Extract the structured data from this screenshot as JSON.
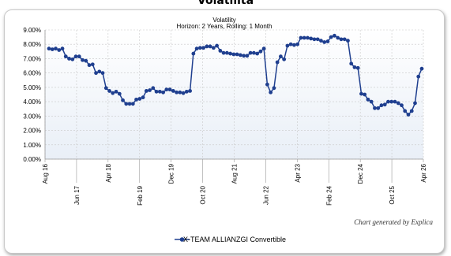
{
  "page_title": "Volatilita",
  "credit": "Chart generated by Explica",
  "colors": {
    "series": "#1f3f8f",
    "grid": "#c8c8c8",
    "plot_bg_top": "#ffffff",
    "plot_bg_bottom": "#e9eff7"
  },
  "chart_data": {
    "type": "line",
    "title": "Volatility",
    "subtitle": "Horizon: 2 Years, Rolling: 1 Month",
    "xlabel": "",
    "ylabel": "",
    "ylim": [
      0,
      9
    ],
    "y_ticks": [
      "0.00%",
      "1.00%",
      "2.00%",
      "3.00%",
      "4.00%",
      "5.00%",
      "6.00%",
      "7.00%",
      "8.00%",
      "9.00%"
    ],
    "x_ticks_upper": [
      "Aug 16",
      "Apr 18",
      "Dec 19",
      "Aug 21",
      "Apr 23",
      "Dec 24",
      "Apr 26"
    ],
    "x_ticks_lower": [
      "Jun 17",
      "Feb 19",
      "Oct 20",
      "Jun 22",
      "Feb 24",
      "Oct 25"
    ],
    "grid": true,
    "legend_position": "bottom",
    "series": [
      {
        "name": "X-TEAM ALLIANZGI Convertible",
        "values": [
          7.7,
          7.65,
          7.7,
          7.6,
          7.7,
          7.15,
          7.0,
          6.95,
          7.15,
          7.15,
          6.9,
          6.85,
          6.55,
          6.6,
          6.0,
          6.1,
          6.0,
          4.95,
          4.75,
          4.6,
          4.7,
          4.55,
          4.1,
          3.85,
          3.85,
          3.85,
          4.15,
          4.2,
          4.3,
          4.75,
          4.8,
          4.95,
          4.7,
          4.7,
          4.65,
          4.85,
          4.85,
          4.75,
          4.65,
          4.65,
          4.6,
          4.7,
          4.75,
          7.35,
          7.7,
          7.75,
          7.75,
          7.85,
          7.85,
          7.75,
          7.9,
          7.55,
          7.4,
          7.4,
          7.35,
          7.3,
          7.3,
          7.25,
          7.2,
          7.2,
          7.4,
          7.4,
          7.35,
          7.5,
          7.7,
          5.2,
          4.65,
          4.95,
          6.75,
          7.15,
          6.95,
          7.9,
          8.0,
          7.95,
          8.0,
          8.45,
          8.45,
          8.45,
          8.4,
          8.35,
          8.35,
          8.25,
          8.15,
          8.2,
          8.5,
          8.6,
          8.45,
          8.35,
          8.35,
          8.25,
          6.65,
          6.4,
          6.35,
          4.55,
          4.5,
          4.15,
          4.0,
          3.55,
          3.55,
          3.75,
          3.8,
          4.0,
          4.0,
          4.0,
          3.9,
          3.75,
          3.35,
          3.1,
          3.35,
          3.9,
          5.75,
          6.3
        ]
      }
    ]
  }
}
